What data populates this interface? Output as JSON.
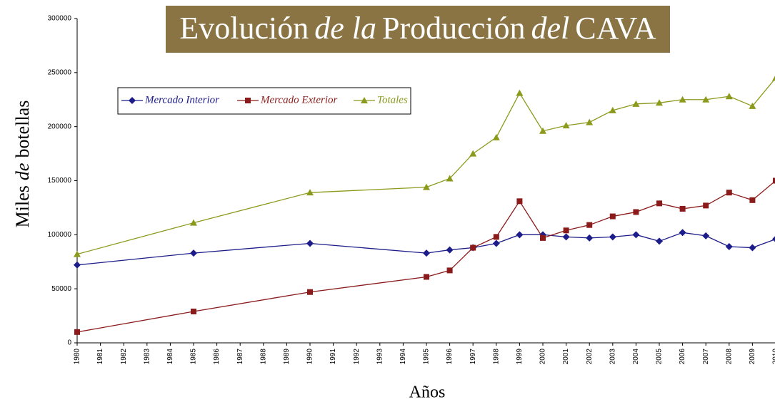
{
  "chart_data": {
    "type": "line",
    "title": [
      "Evolución",
      "de la",
      "Producción",
      "del",
      "CAVA"
    ],
    "y_label": [
      "Miles",
      "de",
      "botellas"
    ],
    "x_label": "Años",
    "x": [
      1980,
      1985,
      1990,
      1995,
      1996,
      1997,
      1998,
      1999,
      2000,
      2001,
      2002,
      2003,
      2004,
      2005,
      2006,
      2007,
      2008,
      2009,
      2010
    ],
    "xlim": [
      1980,
      2010
    ],
    "xticks": [
      1980,
      1981,
      1982,
      1983,
      1984,
      1985,
      1986,
      1987,
      1988,
      1989,
      1990,
      1991,
      1992,
      1993,
      1994,
      1995,
      1996,
      1997,
      1998,
      1999,
      2000,
      2001,
      2002,
      2003,
      2004,
      2005,
      2006,
      2007,
      2008,
      2009,
      2010
    ],
    "ylim": [
      0,
      300000
    ],
    "yticks": [
      0,
      50000,
      100000,
      150000,
      200000,
      250000,
      300000
    ],
    "grid": false,
    "legend": "top-left",
    "series": [
      {
        "name": "Mercado Interior",
        "color": "#1c1c8a",
        "marker": "diamond",
        "values": [
          72000,
          83000,
          92000,
          83000,
          86000,
          88000,
          92000,
          100000,
          100000,
          98000,
          97000,
          98000,
          100000,
          94000,
          102000,
          99000,
          89000,
          88000,
          96000
        ]
      },
      {
        "name": "Mercado Exterior",
        "color": "#8b1a1a",
        "marker": "square",
        "values": [
          10000,
          29000,
          47000,
          61000,
          67000,
          88000,
          98000,
          131000,
          97000,
          104000,
          109000,
          117000,
          121000,
          129000,
          124000,
          127000,
          139000,
          132000,
          150000
        ]
      },
      {
        "name": "Totales",
        "color": "#8c9a1c",
        "marker": "triangle",
        "values": [
          82000,
          111000,
          139000,
          144000,
          152000,
          175000,
          190000,
          231000,
          196000,
          201000,
          204000,
          215000,
          221000,
          222000,
          225000,
          225000,
          228000,
          219000,
          245000
        ]
      }
    ]
  }
}
